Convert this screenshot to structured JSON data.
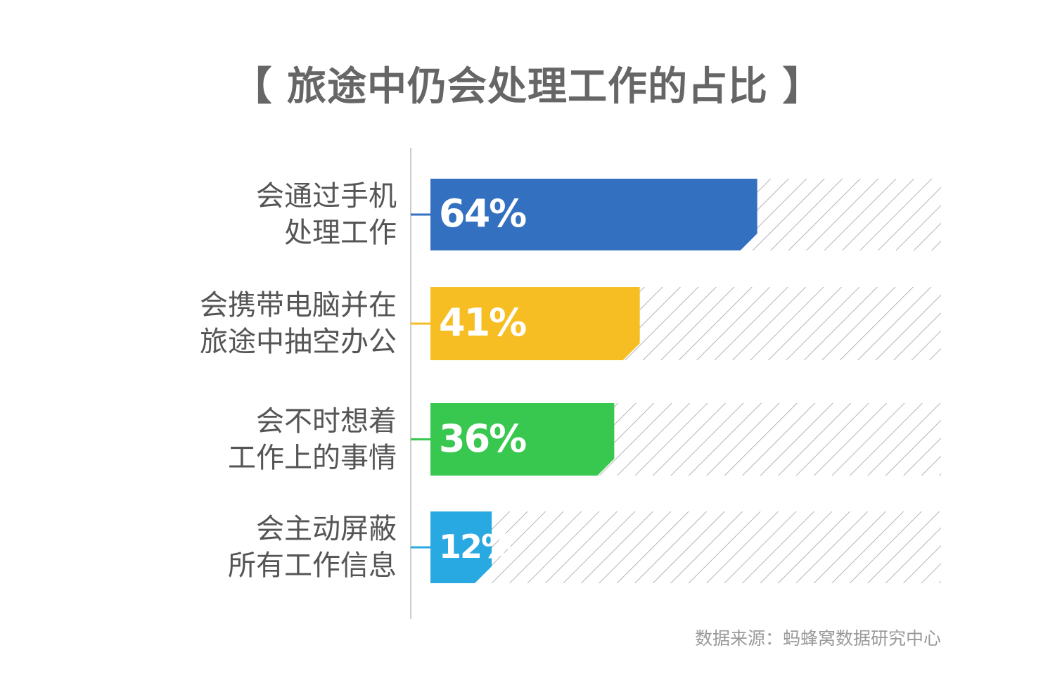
{
  "chart_data": {
    "type": "bar",
    "orientation": "horizontal",
    "title": "【 旅途中仍会处理工作的占比 】",
    "categories": [
      [
        "会通过手机",
        "处理工作"
      ],
      [
        "会携带电脑并在",
        "旅途中抽空办公"
      ],
      [
        "会不时想着",
        "工作上的事情"
      ],
      [
        "会主动屏蔽",
        "所有工作信息"
      ]
    ],
    "values": [
      64,
      41,
      36,
      12
    ],
    "value_labels": [
      "64%",
      "41%",
      "36%",
      "12%"
    ],
    "xlim": [
      0,
      100
    ],
    "colors": [
      "#3370c0",
      "#f6be22",
      "#38c74f",
      "#29a9e1"
    ],
    "background_pattern": "diagonal-hatch",
    "grid": false
  },
  "source": "数据来源：蚂蜂窝数据研究中心"
}
